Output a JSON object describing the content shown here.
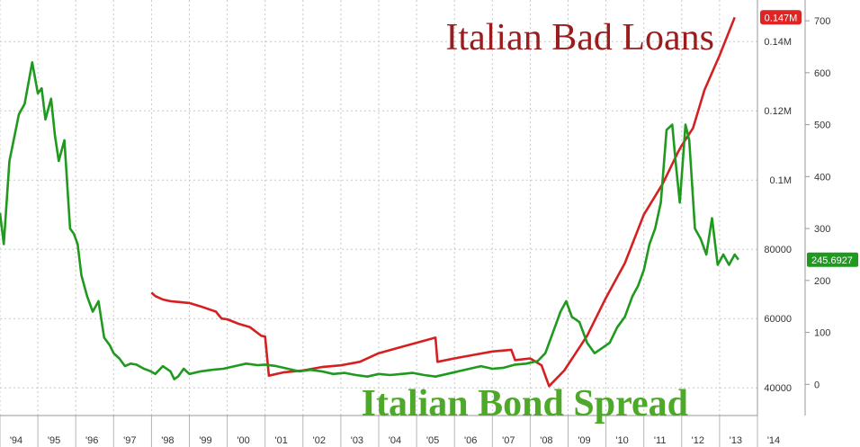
{
  "chart_data": {
    "type": "line",
    "x_axis": {
      "labels": [
        "'94",
        "'95",
        "'96",
        "'97",
        "'98",
        "'99",
        "'00",
        "'01",
        "'02",
        "'03",
        "'04",
        "'05",
        "'06",
        "'07",
        "'08",
        "'09",
        "'10",
        "'11",
        "'12",
        "'13",
        "'14"
      ],
      "range": [
        1994,
        2014
      ]
    },
    "left_axis": {
      "ticks": [
        "40000",
        "60000",
        "80000",
        "0.1M",
        "0.12M",
        "0.14M"
      ],
      "values": [
        40000,
        60000,
        80000,
        100000,
        120000,
        140000
      ],
      "range": [
        32000,
        152000
      ]
    },
    "right_axis": {
      "ticks": [
        "0",
        "100",
        "200",
        "300",
        "400",
        "500",
        "600",
        "700"
      ],
      "values": [
        0,
        100,
        200,
        300,
        400,
        500,
        600,
        700
      ],
      "range": [
        -60,
        740
      ]
    },
    "grid": true,
    "series": [
      {
        "name": "Italian Bad Loans",
        "color": "#d42020",
        "axis": "left",
        "x": [
          1998.0,
          1998.1,
          1998.3,
          1998.5,
          1998.7,
          1999.0,
          1999.3,
          1999.7,
          1999.85,
          2000.0,
          2000.3,
          2000.6,
          2000.9,
          2001.0,
          2001.1,
          2001.5,
          2002.0,
          2002.5,
          2003.0,
          2003.5,
          2004.0,
          2004.5,
          2005.0,
          2005.5,
          2005.55,
          2006.0,
          2006.5,
          2007.0,
          2007.5,
          2007.6,
          2008.0,
          2008.3,
          2008.5,
          2008.9,
          2009.5,
          2010.0,
          2010.5,
          2011.0,
          2011.5,
          2011.9,
          2012.0,
          2012.3,
          2012.6,
          2013.0,
          2013.4
        ],
        "y": [
          67500,
          66500,
          65500,
          65000,
          64800,
          64500,
          63500,
          62000,
          60000,
          59800,
          58500,
          57500,
          55000,
          54800,
          43500,
          44500,
          45000,
          46000,
          46500,
          47500,
          50000,
          51500,
          53000,
          54500,
          47500,
          48500,
          49500,
          50500,
          51000,
          48000,
          48500,
          46500,
          40500,
          45000,
          55000,
          66000,
          76000,
          90000,
          99000,
          108000,
          110000,
          115000,
          126000,
          136000,
          147000
        ]
      },
      {
        "name": "Italian Bond Spread",
        "color": "#1f9a1f",
        "axis": "right",
        "x": [
          1994.0,
          1994.1,
          1994.25,
          1994.5,
          1994.65,
          1994.85,
          1995.0,
          1995.1,
          1995.2,
          1995.35,
          1995.45,
          1995.55,
          1995.7,
          1995.85,
          1995.95,
          1996.05,
          1996.15,
          1996.3,
          1996.45,
          1996.6,
          1996.75,
          1996.9,
          1997.0,
          1997.15,
          1997.3,
          1997.45,
          1997.6,
          1997.8,
          1997.95,
          1998.1,
          1998.3,
          1998.5,
          1998.6,
          1998.7,
          1998.85,
          1999.0,
          1999.3,
          1999.6,
          1999.9,
          2000.2,
          2000.5,
          2000.8,
          2001.0,
          2001.3,
          2001.6,
          2001.9,
          2002.2,
          2002.5,
          2002.8,
          2003.1,
          2003.4,
          2003.7,
          2004.0,
          2004.3,
          2004.6,
          2004.9,
          2005.2,
          2005.5,
          2005.8,
          2006.1,
          2006.4,
          2006.7,
          2007.0,
          2007.3,
          2007.6,
          2007.9,
          2008.2,
          2008.4,
          2008.6,
          2008.8,
          2008.95,
          2009.1,
          2009.3,
          2009.5,
          2009.7,
          2009.9,
          2010.1,
          2010.3,
          2010.5,
          2010.7,
          2010.85,
          2011.0,
          2011.15,
          2011.3,
          2011.45,
          2011.6,
          2011.75,
          2011.85,
          2011.95,
          2012.1,
          2012.2,
          2012.35,
          2012.5,
          2012.65,
          2012.8,
          2012.95,
          2013.1,
          2013.25,
          2013.4,
          2013.5
        ],
        "y": [
          330,
          270,
          430,
          520,
          540,
          620,
          560,
          570,
          510,
          550,
          480,
          430,
          470,
          300,
          290,
          270,
          210,
          170,
          140,
          160,
          90,
          75,
          60,
          50,
          35,
          40,
          38,
          30,
          26,
          20,
          35,
          25,
          10,
          15,
          30,
          20,
          25,
          28,
          30,
          35,
          40,
          37,
          38,
          35,
          30,
          25,
          28,
          25,
          20,
          22,
          18,
          15,
          20,
          18,
          20,
          22,
          18,
          15,
          20,
          25,
          30,
          35,
          30,
          32,
          38,
          40,
          45,
          60,
          100,
          140,
          160,
          130,
          120,
          80,
          60,
          70,
          80,
          110,
          130,
          170,
          190,
          220,
          270,
          300,
          350,
          490,
          500,
          420,
          350,
          500,
          470,
          300,
          280,
          250,
          320,
          230,
          250,
          230,
          250,
          240
        ]
      }
    ],
    "annotations": {
      "bad_loans_title": "Italian Bad Loans",
      "spread_title": "Italian Bond Spread",
      "left_last_value": "0.147M",
      "right_last_value": "245.6927"
    }
  }
}
